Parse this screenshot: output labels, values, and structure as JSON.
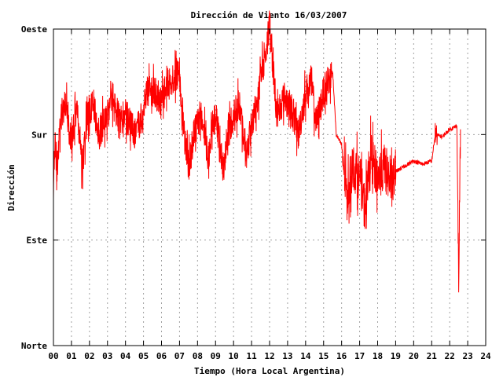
{
  "chart_data": {
    "type": "line",
    "title": "Dirección de Viento 16/03/2007",
    "xlabel": "Tiempo (Hora Local Argentina)",
    "ylabel": "Dirección",
    "xlim": [
      0,
      24
    ],
    "ylim": [
      0,
      3
    ],
    "x_ticks": [
      "00",
      "01",
      "02",
      "03",
      "04",
      "05",
      "06",
      "07",
      "08",
      "09",
      "10",
      "11",
      "12",
      "13",
      "14",
      "15",
      "16",
      "17",
      "18",
      "19",
      "20",
      "21",
      "22",
      "23",
      "24"
    ],
    "y_ticks": [
      {
        "value": 0,
        "label": "Norte"
      },
      {
        "value": 1,
        "label": "Este"
      },
      {
        "value": 2,
        "label": "Sur"
      },
      {
        "value": 3,
        "label": "Oeste"
      }
    ],
    "grid": true,
    "series_color": "#ff0000",
    "anchors": [
      [
        0.0,
        1.4
      ],
      [
        0.05,
        1.95
      ],
      [
        0.2,
        1.7
      ],
      [
        0.4,
        2.15
      ],
      [
        0.7,
        2.3
      ],
      [
        1.0,
        1.95
      ],
      [
        1.3,
        2.25
      ],
      [
        1.6,
        1.7
      ],
      [
        1.9,
        2.2
      ],
      [
        2.2,
        2.3
      ],
      [
        2.5,
        2.0
      ],
      [
        2.9,
        2.15
      ],
      [
        3.3,
        2.35
      ],
      [
        3.7,
        2.1
      ],
      [
        4.0,
        2.2
      ],
      [
        4.5,
        2.0
      ],
      [
        4.8,
        2.1
      ],
      [
        5.2,
        2.4
      ],
      [
        5.6,
        2.4
      ],
      [
        6.0,
        2.3
      ],
      [
        6.3,
        2.5
      ],
      [
        6.7,
        2.55
      ],
      [
        7.0,
        2.6
      ],
      [
        7.1,
        2.2
      ],
      [
        7.5,
        1.7
      ],
      [
        7.8,
        2.0
      ],
      [
        8.2,
        2.2
      ],
      [
        8.6,
        1.8
      ],
      [
        9.0,
        2.2
      ],
      [
        9.4,
        1.7
      ],
      [
        9.8,
        2.1
      ],
      [
        10.3,
        2.3
      ],
      [
        10.7,
        1.8
      ],
      [
        11.0,
        2.1
      ],
      [
        11.4,
        2.4
      ],
      [
        11.8,
        2.8
      ],
      [
        12.0,
        3.05
      ],
      [
        12.4,
        2.2
      ],
      [
        12.8,
        2.35
      ],
      [
        13.2,
        2.25
      ],
      [
        13.6,
        2.0
      ],
      [
        14.0,
        2.4
      ],
      [
        14.3,
        2.5
      ],
      [
        14.6,
        2.1
      ],
      [
        15.0,
        2.4
      ],
      [
        15.5,
        2.6
      ],
      [
        15.7,
        2.0
      ],
      [
        16.0,
        1.9
      ],
      [
        16.3,
        1.4
      ],
      [
        16.6,
        1.7
      ],
      [
        17.0,
        1.6
      ],
      [
        17.3,
        1.3
      ],
      [
        17.6,
        1.8
      ],
      [
        18.0,
        1.6
      ],
      [
        18.4,
        1.7
      ],
      [
        18.8,
        1.5
      ],
      [
        19.0,
        1.65
      ],
      [
        19.5,
        1.7
      ],
      [
        20.0,
        1.75
      ],
      [
        20.5,
        1.72
      ],
      [
        21.0,
        1.75
      ],
      [
        21.2,
        2.0
      ],
      [
        21.6,
        1.98
      ],
      [
        22.0,
        2.05
      ],
      [
        22.4,
        2.08
      ],
      [
        22.5,
        0.6
      ],
      [
        22.6,
        2.05
      ]
    ]
  }
}
